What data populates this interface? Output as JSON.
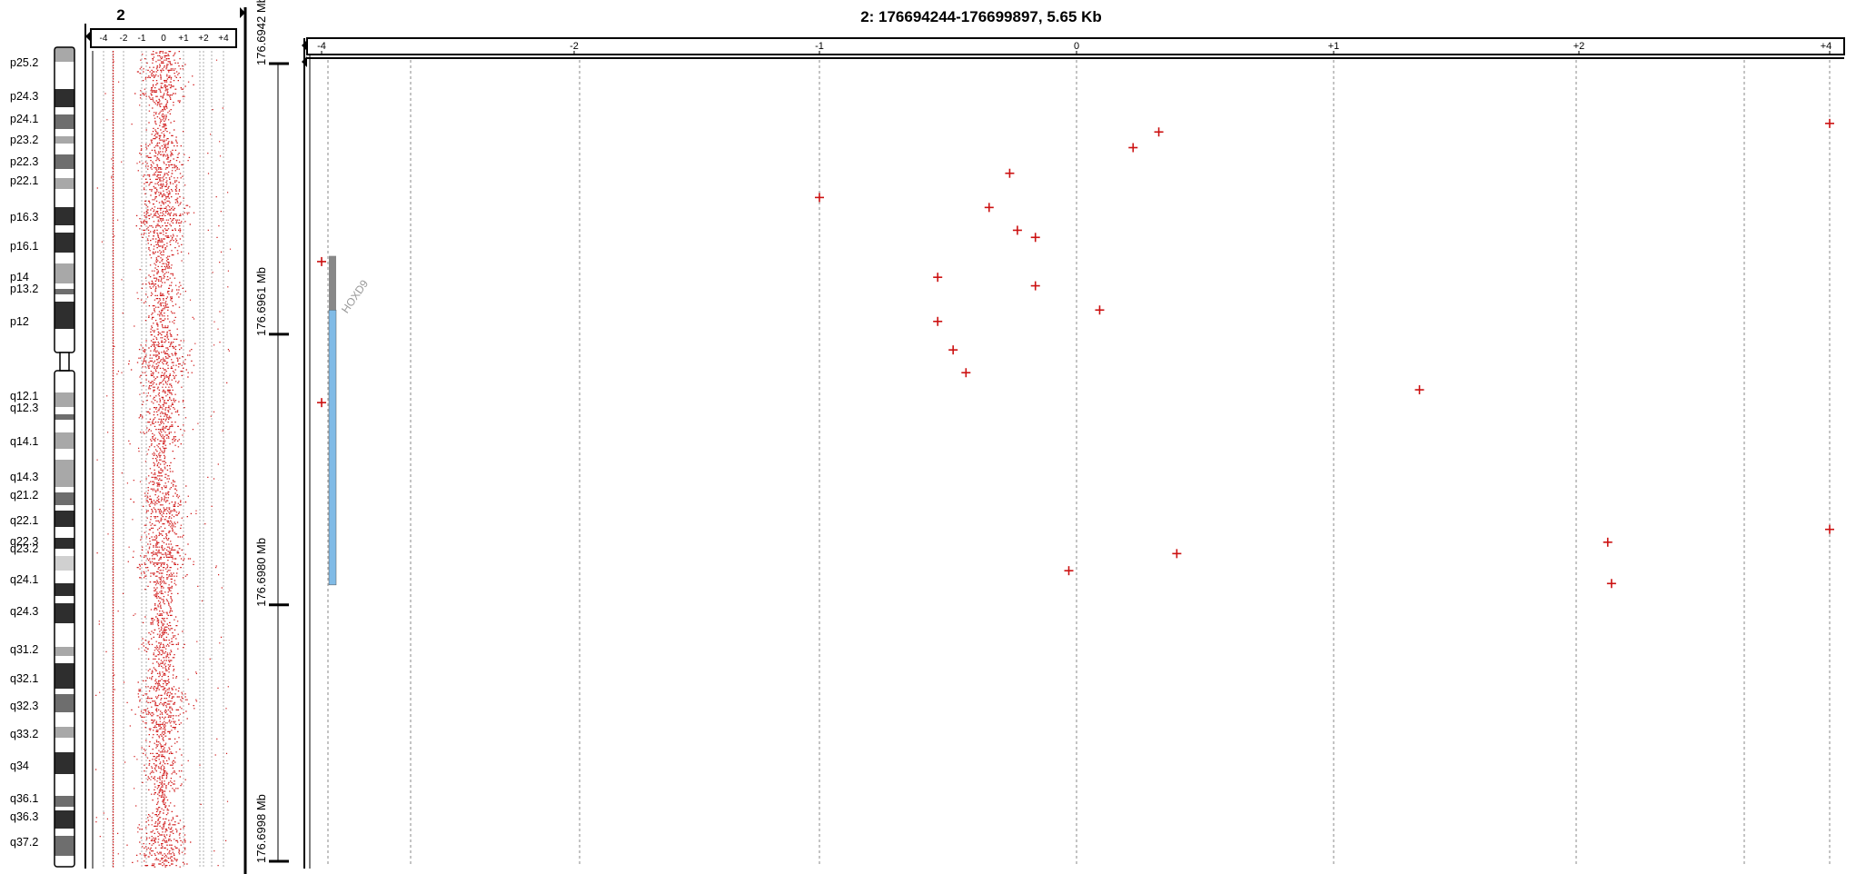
{
  "genome_overview": {
    "chromosome_label": "2",
    "x_ticks": [
      "-4",
      "-2",
      "-1",
      "0",
      "+1",
      "+2",
      "+4"
    ],
    "bands": [
      "p25.2",
      "p24.3",
      "p24.1",
      "p23.2",
      "p22.3",
      "p22.1",
      "p16.3",
      "p16.1",
      "p14",
      "p13.2",
      "p12",
      "q12.1",
      "q12.3",
      "q14.1",
      "q14.3",
      "q21.2",
      "q22.1",
      "q22.3",
      "q23.2",
      "q24.1",
      "q24.3",
      "q31.2",
      "q32.1",
      "q32.3",
      "q33.2",
      "q34",
      "q36.1",
      "q36.3",
      "q37.2"
    ]
  },
  "chart_data": {
    "type": "scatter",
    "title": "2: 176694244-176699897, 5.65 Kb",
    "x_ticks": [
      "-4",
      "-2",
      "-1",
      "0",
      "+1",
      "+2",
      "+4"
    ],
    "x_tick_values": [
      -4,
      -2,
      -1,
      0,
      1,
      2,
      4
    ],
    "y_axis_unit": "Mb",
    "y_ticks": [
      "176.6942 Mb",
      "176.6961 Mb",
      "176.6980 Mb",
      "176.6998 Mb"
    ],
    "y_tick_values": [
      176.6942,
      176.6961,
      176.698,
      176.6998
    ],
    "y_range": [
      176.6942,
      176.6998
    ],
    "grid": true,
    "marker": "+",
    "marker_color": "#cc1111",
    "gene": {
      "name": "HOXD9",
      "start": 176.69555,
      "end": 176.69786,
      "coding_start": 176.69593
    },
    "points": [
      {
        "x": 4.0,
        "y": 176.69462
      },
      {
        "x": 0.32,
        "y": 176.69468
      },
      {
        "x": 0.22,
        "y": 176.69479
      },
      {
        "x": -0.26,
        "y": 176.69497
      },
      {
        "x": -1.0,
        "y": 176.69514
      },
      {
        "x": -0.34,
        "y": 176.69521
      },
      {
        "x": -0.23,
        "y": 176.69537
      },
      {
        "x": -0.16,
        "y": 176.69542
      },
      {
        "x": -4.0,
        "y": 176.69559
      },
      {
        "x": -0.54,
        "y": 176.6957
      },
      {
        "x": -0.16,
        "y": 176.69576
      },
      {
        "x": 0.09,
        "y": 176.69593
      },
      {
        "x": -0.54,
        "y": 176.69601
      },
      {
        "x": -0.48,
        "y": 176.69621
      },
      {
        "x": -0.43,
        "y": 176.69637
      },
      {
        "x": 1.35,
        "y": 176.69649
      },
      {
        "x": -4.0,
        "y": 176.69658
      },
      {
        "x": 4.0,
        "y": 176.69747
      },
      {
        "x": 2.23,
        "y": 176.69756
      },
      {
        "x": 0.39,
        "y": 176.69764
      },
      {
        "x": -0.03,
        "y": 176.69776
      },
      {
        "x": 2.26,
        "y": 176.69785
      }
    ]
  },
  "colors": {
    "points": "#cc1111",
    "gene_utr": "#888888",
    "gene_body": "#80bbe6",
    "grid": "#888888"
  }
}
